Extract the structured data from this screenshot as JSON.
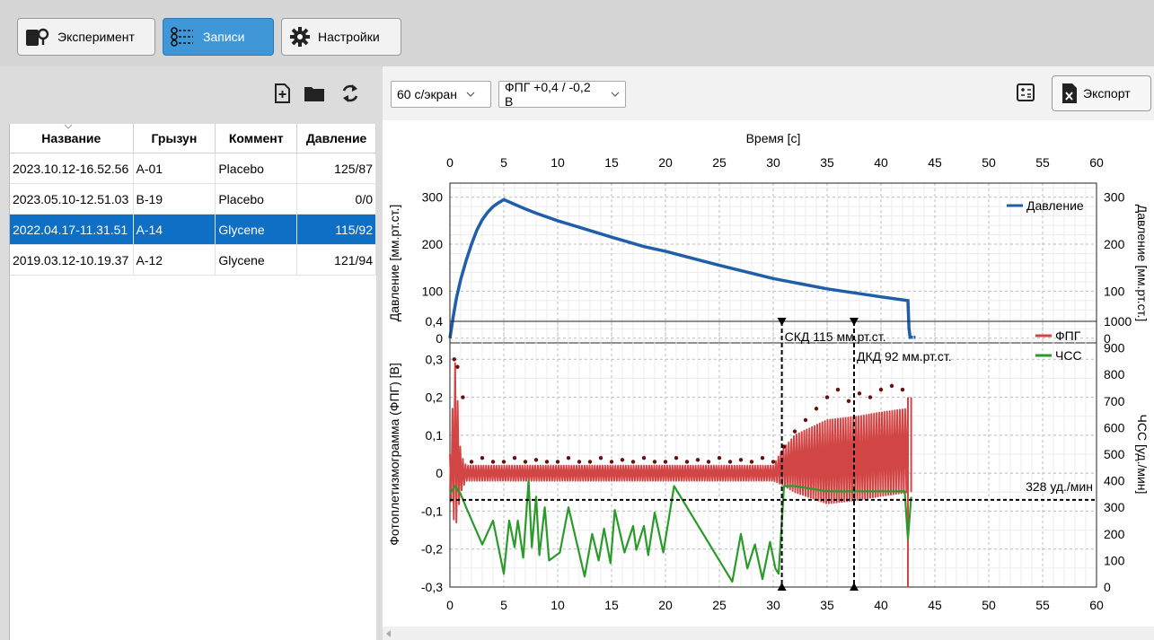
{
  "toolbar": {
    "experiment_label": "Эксперимент",
    "records_label": "Записи",
    "settings_label": "Настройки"
  },
  "records_table": {
    "columns": [
      "Название",
      "Грызун",
      "Коммент",
      "Давление"
    ],
    "rows": [
      {
        "name": "2023.10.12-16.52.56",
        "rodent": "A-01",
        "comment": "Placebo",
        "pressure": "125/87"
      },
      {
        "name": "2023.05.10-12.51.03",
        "rodent": "B-19",
        "comment": "Placebo",
        "pressure": "0/0"
      },
      {
        "name": "2022.04.17-11.31.51",
        "rodent": "A-14",
        "comment": "Glycene",
        "pressure": "115/92"
      },
      {
        "name": "2019.03.12-10.19.37",
        "rodent": "A-12",
        "comment": "Glycene",
        "pressure": "121/94"
      }
    ],
    "selected_index": 2
  },
  "plot_toolbar": {
    "time_scale": "60 с/экран",
    "ppg_range": "ФПГ +0,4 / -0,2 В",
    "export_label": "Экспорт"
  },
  "colors": {
    "pressure": "#1f5ea8",
    "ppg": "#d24545",
    "hr": "#2a9a2a",
    "peaks": "#6b1010",
    "selection": "#0f6fc4"
  },
  "chart_data": [
    {
      "type": "line",
      "title": "Время [с]",
      "xlabel": "Время [с]",
      "ylabel": "Давление [мм.рт.ст.]",
      "y2label": "Давление [мм.рт.ст.]",
      "xlim": [
        0,
        60
      ],
      "ylim": [
        -10,
        330
      ],
      "xticks": [
        0,
        5,
        10,
        15,
        20,
        25,
        30,
        35,
        40,
        45,
        50,
        55,
        60
      ],
      "yticks": [
        0,
        100,
        200,
        300
      ],
      "legend_position": "top-right",
      "grid": true,
      "series": [
        {
          "name": "Давление",
          "x": [
            0,
            0.3,
            0.6,
            1,
            1.5,
            2,
            2.5,
            3,
            3.5,
            4,
            4.5,
            5,
            6,
            7,
            8,
            10,
            12,
            15,
            18,
            20,
            25,
            30,
            35,
            40,
            42.5,
            42.6,
            42.7,
            43.2
          ],
          "y": [
            0,
            45,
            85,
            125,
            165,
            200,
            230,
            252,
            268,
            280,
            288,
            295,
            285,
            275,
            266,
            250,
            236,
            215,
            195,
            185,
            155,
            127,
            105,
            88,
            80,
            20,
            2,
            2
          ]
        }
      ]
    },
    {
      "type": "line",
      "xlabel": "",
      "ylabel": "Фотоплетизмограмма (ФПГ) [В]",
      "y2label": "ЧСС [уд./мин]",
      "xlim": [
        0,
        60
      ],
      "ylim": [
        -0.3,
        0.4
      ],
      "y2lim": [
        0,
        1000
      ],
      "xticks": [
        0,
        5,
        10,
        15,
        20,
        25,
        30,
        35,
        40,
        45,
        50,
        55,
        60
      ],
      "yticks": [
        "0,4",
        "0,3",
        "0,2",
        "0,1",
        "0",
        "-0,1",
        "-0,2",
        "-0,3"
      ],
      "y2ticks": [
        1000,
        900,
        800,
        700,
        600,
        500,
        400,
        300,
        200,
        100,
        0
      ],
      "legend_position": "top-right",
      "grid": true,
      "series": [
        {
          "name": "ФПГ",
          "axis": "left",
          "envelope_x": [
            0,
            0.5,
            1,
            1.5,
            2,
            30,
            30.8,
            32,
            35,
            38,
            40,
            42.5
          ],
          "envelope_top": [
            0.05,
            0.3,
            0.05,
            0.02,
            0.02,
            0.02,
            0.06,
            0.1,
            0.14,
            0.15,
            0.16,
            0.17
          ],
          "envelope_bottom": [
            -0.05,
            -0.15,
            -0.05,
            -0.02,
            -0.02,
            -0.02,
            -0.03,
            -0.05,
            -0.08,
            -0.07,
            -0.06,
            -0.05
          ]
        },
        {
          "name": "ЧСС",
          "axis": "right",
          "x": [
            0,
            0.5,
            1,
            1.5,
            3,
            4,
            5,
            5.5,
            6,
            6.3,
            6.8,
            7.3,
            7.6,
            8,
            8.3,
            8.8,
            9.2,
            10.2,
            11,
            12.5,
            13.2,
            13.8,
            14.3,
            14.9,
            15.3,
            16.2,
            17,
            17.3,
            18,
            18.4,
            19,
            19.8,
            20.8,
            26.2,
            27,
            27.6,
            28.3,
            29,
            29.7,
            30.2,
            30.5,
            31,
            32,
            35,
            40,
            42.2,
            42.5,
            42.8
          ],
          "y": [
            350,
            380,
            350,
            300,
            160,
            250,
            50,
            250,
            150,
            250,
            110,
            400,
            150,
            340,
            120,
            300,
            100,
            130,
            300,
            40,
            200,
            100,
            220,
            90,
            290,
            130,
            230,
            140,
            230,
            120,
            280,
            130,
            380,
            20,
            200,
            70,
            160,
            30,
            170,
            70,
            50,
            380,
            380,
            360,
            360,
            360,
            180,
            340
          ]
        },
        {
          "name": "peaks",
          "axis": "left",
          "x": [
            0.4,
            0.7,
            1.2,
            2,
            3,
            4,
            5,
            6,
            7,
            8,
            9,
            10,
            11,
            12,
            13,
            14,
            15,
            16,
            17,
            18,
            19,
            20,
            21,
            22,
            23,
            24,
            25,
            26,
            27,
            28,
            29,
            30,
            31,
            32,
            33,
            34,
            35,
            36,
            37,
            38,
            39,
            40,
            41,
            42
          ],
          "y": [
            0.3,
            0.28,
            0.2,
            0.03,
            0.04,
            0.03,
            0.03,
            0.04,
            0.03,
            0.035,
            0.03,
            0.03,
            0.04,
            0.03,
            0.03,
            0.04,
            0.03,
            0.035,
            0.03,
            0.04,
            0.03,
            0.03,
            0.04,
            0.03,
            0.035,
            0.03,
            0.04,
            0.03,
            0.035,
            0.03,
            0.04,
            0.03,
            0.07,
            0.11,
            0.14,
            0.17,
            0.2,
            0.22,
            0.19,
            0.21,
            0.2,
            0.22,
            0.23,
            0.22
          ]
        }
      ],
      "markers": [
        {
          "label": "СКД 115 мм.рт.ст.",
          "x": 30.8
        },
        {
          "label": "ДКД 92 мм.рт.ст.",
          "x": 37.5
        }
      ],
      "threshold": {
        "label": "328 уд./мин",
        "value": 328
      }
    }
  ]
}
